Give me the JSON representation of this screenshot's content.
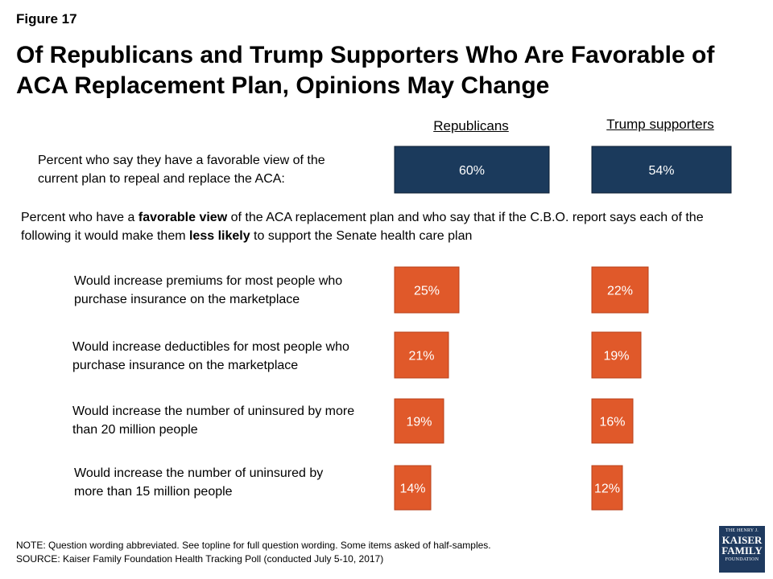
{
  "figure_label": "Figure 17",
  "title": "Of Republicans and Trump Supporters Who Are Favorable of ACA Replacement Plan, Opinions May Change",
  "columns": {
    "republicans": "Republicans",
    "trump": "Trump supporters"
  },
  "top_row": {
    "label": "Percent who say they have a favorable view of the current plan to repeal and replace the ACA:"
  },
  "intro": {
    "part1": "Percent who have a ",
    "bold1": "favorable view",
    "part2": " of the ACA replacement plan and who say that if the C.B.O. report says each of the following it would make them ",
    "bold2": "less likely",
    "part3": " to support the Senate health care plan"
  },
  "rows": [
    {
      "label": "Would increase premiums for most people who purchase insurance on the marketplace"
    },
    {
      "label": "Would increase deductibles for most people who purchase insurance on the marketplace"
    },
    {
      "label": "Would increase the number of uninsured by more than 20 million people"
    },
    {
      "label": "Would increase the number of uninsured by more than 15 million people"
    }
  ],
  "chart_data": {
    "type": "bar",
    "categories": [
      "Percent who say they have a favorable view of the current plan to repeal and replace the ACA:",
      "Would increase premiums for most people who purchase insurance on the marketplace",
      "Would increase deductibles for most people who purchase insurance on the marketplace",
      "Would increase the number of uninsured by more than 20 million people",
      "Would increase the number of uninsured by more than 15 million people"
    ],
    "series": [
      {
        "name": "Republicans",
        "values": [
          60,
          25,
          21,
          19,
          14
        ],
        "labels": [
          "60%",
          "25%",
          "21%",
          "19%",
          "14%"
        ]
      },
      {
        "name": "Trump supporters",
        "values": [
          54,
          22,
          19,
          16,
          12
        ],
        "labels": [
          "54%",
          "22%",
          "19%",
          "16%",
          "12%"
        ]
      }
    ],
    "colors": {
      "favorable": "#1b3a5c",
      "less_likely": "#e0592a"
    }
  },
  "note": "NOTE: Question wording abbreviated. See topline for full question wording. Some items asked of half-samples.",
  "source": "SOURCE: Kaiser Family Foundation Health Tracking Poll (conducted July 5-10, 2017)",
  "logo": {
    "line1": "THE HENRY J.",
    "line2": "KAISER",
    "line3": "FAMILY",
    "line4": "FOUNDATION"
  }
}
